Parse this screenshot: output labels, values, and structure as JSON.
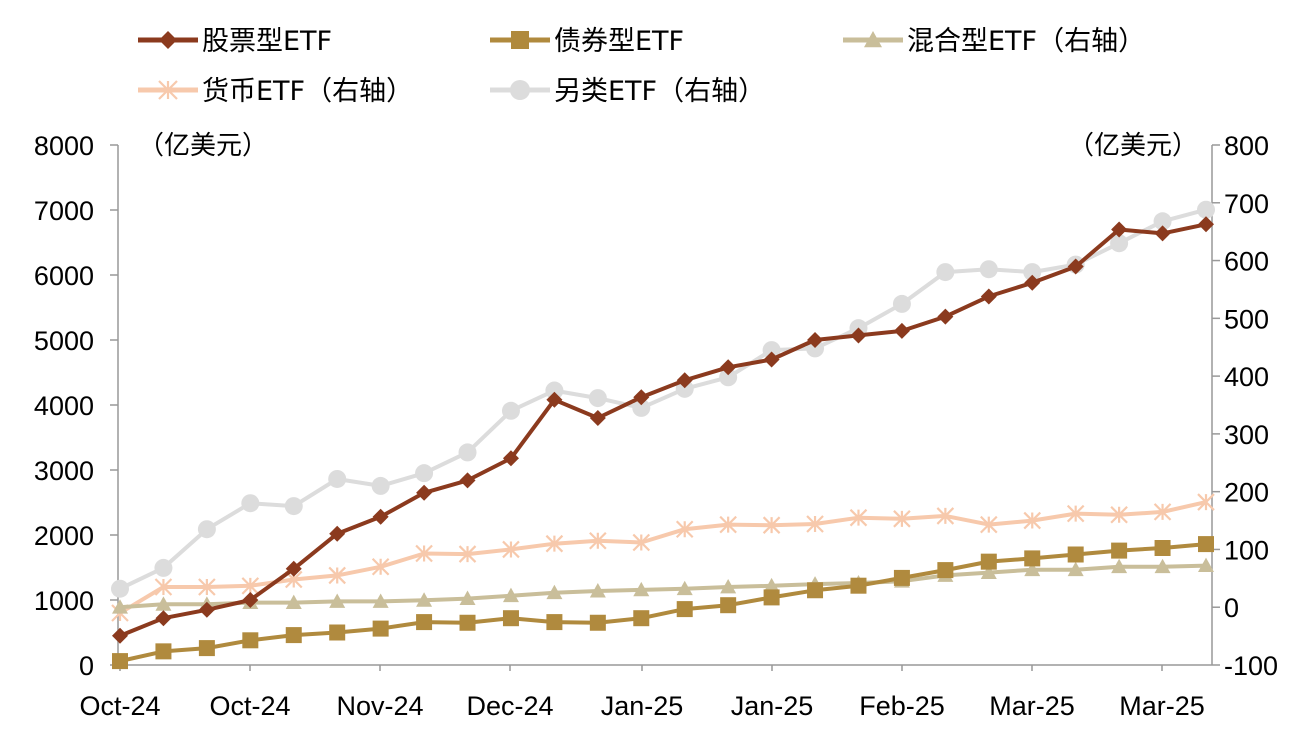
{
  "chart_data": {
    "type": "line",
    "left_unit": "（亿美元）",
    "right_unit": "（亿美元）",
    "x_tick_labels": [
      "Oct-24",
      "Oct-24",
      "Nov-24",
      "Dec-24",
      "Jan-25",
      "Jan-25",
      "Feb-25",
      "Mar-25",
      "Mar-25"
    ],
    "y_left": {
      "min": 0,
      "max": 8000,
      "ticks": [
        0,
        1000,
        2000,
        3000,
        4000,
        5000,
        6000,
        7000,
        8000
      ]
    },
    "y_right": {
      "min": -100,
      "max": 800,
      "ticks": [
        -100,
        0,
        100,
        200,
        300,
        400,
        500,
        600,
        700,
        800
      ]
    },
    "legend_placement": "top",
    "series": [
      {
        "name": "股票型ETF",
        "axis": "left",
        "color": "#8B3A1E",
        "marker": "diamond",
        "values": [
          450,
          720,
          850,
          1000,
          1480,
          2020,
          2280,
          2650,
          2840,
          3180,
          4080,
          3800,
          4120,
          4380,
          4580,
          4700,
          5000,
          5070,
          5140,
          5360,
          5670,
          5880,
          6130,
          6700,
          6640,
          6780
        ]
      },
      {
        "name": "债券型ETF",
        "axis": "left",
        "color": "#B08A3E",
        "marker": "square",
        "values": [
          60,
          210,
          260,
          380,
          460,
          500,
          560,
          660,
          650,
          720,
          660,
          650,
          720,
          860,
          920,
          1040,
          1150,
          1220,
          1340,
          1460,
          1590,
          1640,
          1700,
          1760,
          1800,
          1860
        ]
      },
      {
        "name": "混合型ETF（右轴）",
        "axis": "right",
        "color": "#C9BE9A",
        "marker": "triangle",
        "values": [
          0,
          5,
          5,
          8,
          8,
          10,
          10,
          12,
          15,
          20,
          25,
          28,
          30,
          32,
          35,
          37,
          40,
          42,
          45,
          55,
          60,
          65,
          65,
          70,
          70,
          72
        ]
      },
      {
        "name": "货币ETF（右轴）",
        "axis": "right",
        "color": "#F7C9AC",
        "marker": "x",
        "values": [
          -10,
          35,
          35,
          37,
          48,
          55,
          70,
          93,
          92,
          100,
          110,
          115,
          112,
          135,
          143,
          142,
          144,
          155,
          153,
          158,
          143,
          150,
          162,
          160,
          165,
          182
        ]
      },
      {
        "name": "另类ETF（右轴）",
        "axis": "right",
        "color": "#DCDCDC",
        "marker": "circle",
        "values": [
          32,
          68,
          135,
          180,
          175,
          222,
          210,
          232,
          268,
          340,
          375,
          362,
          345,
          378,
          398,
          445,
          448,
          483,
          525,
          580,
          585,
          580,
          593,
          630,
          668,
          688
        ]
      }
    ]
  }
}
